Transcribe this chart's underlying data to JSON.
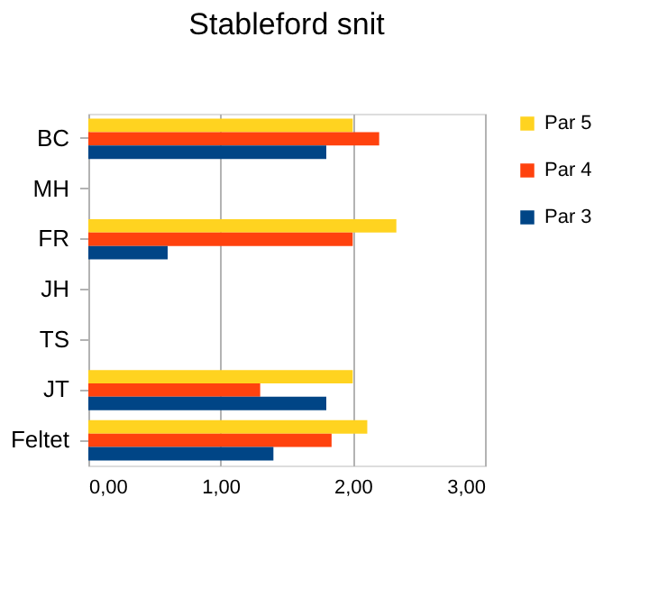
{
  "chart_data": {
    "type": "bar",
    "orientation": "horizontal",
    "title": "Stableford snit",
    "categories": [
      "BC",
      "MH",
      "FR",
      "JH",
      "TS",
      "JT",
      "Feltet"
    ],
    "series": [
      {
        "name": "Par 5",
        "color": "#ffd320",
        "values": [
          2.0,
          null,
          2.33,
          null,
          null,
          2.0,
          2.11
        ]
      },
      {
        "name": "Par 4",
        "color": "#ff420e",
        "values": [
          2.2,
          null,
          2.0,
          null,
          null,
          1.3,
          1.84
        ]
      },
      {
        "name": "Par 3",
        "color": "#004586",
        "values": [
          1.8,
          null,
          0.6,
          null,
          null,
          1.8,
          1.4
        ]
      }
    ],
    "xlim": [
      0,
      3
    ],
    "xticks": [
      {
        "value": 0,
        "label": "0,00"
      },
      {
        "value": 1,
        "label": "1,00"
      },
      {
        "value": 2,
        "label": "2,00"
      },
      {
        "value": 3,
        "label": "3,00"
      }
    ],
    "grid": "x",
    "legend": "right"
  }
}
